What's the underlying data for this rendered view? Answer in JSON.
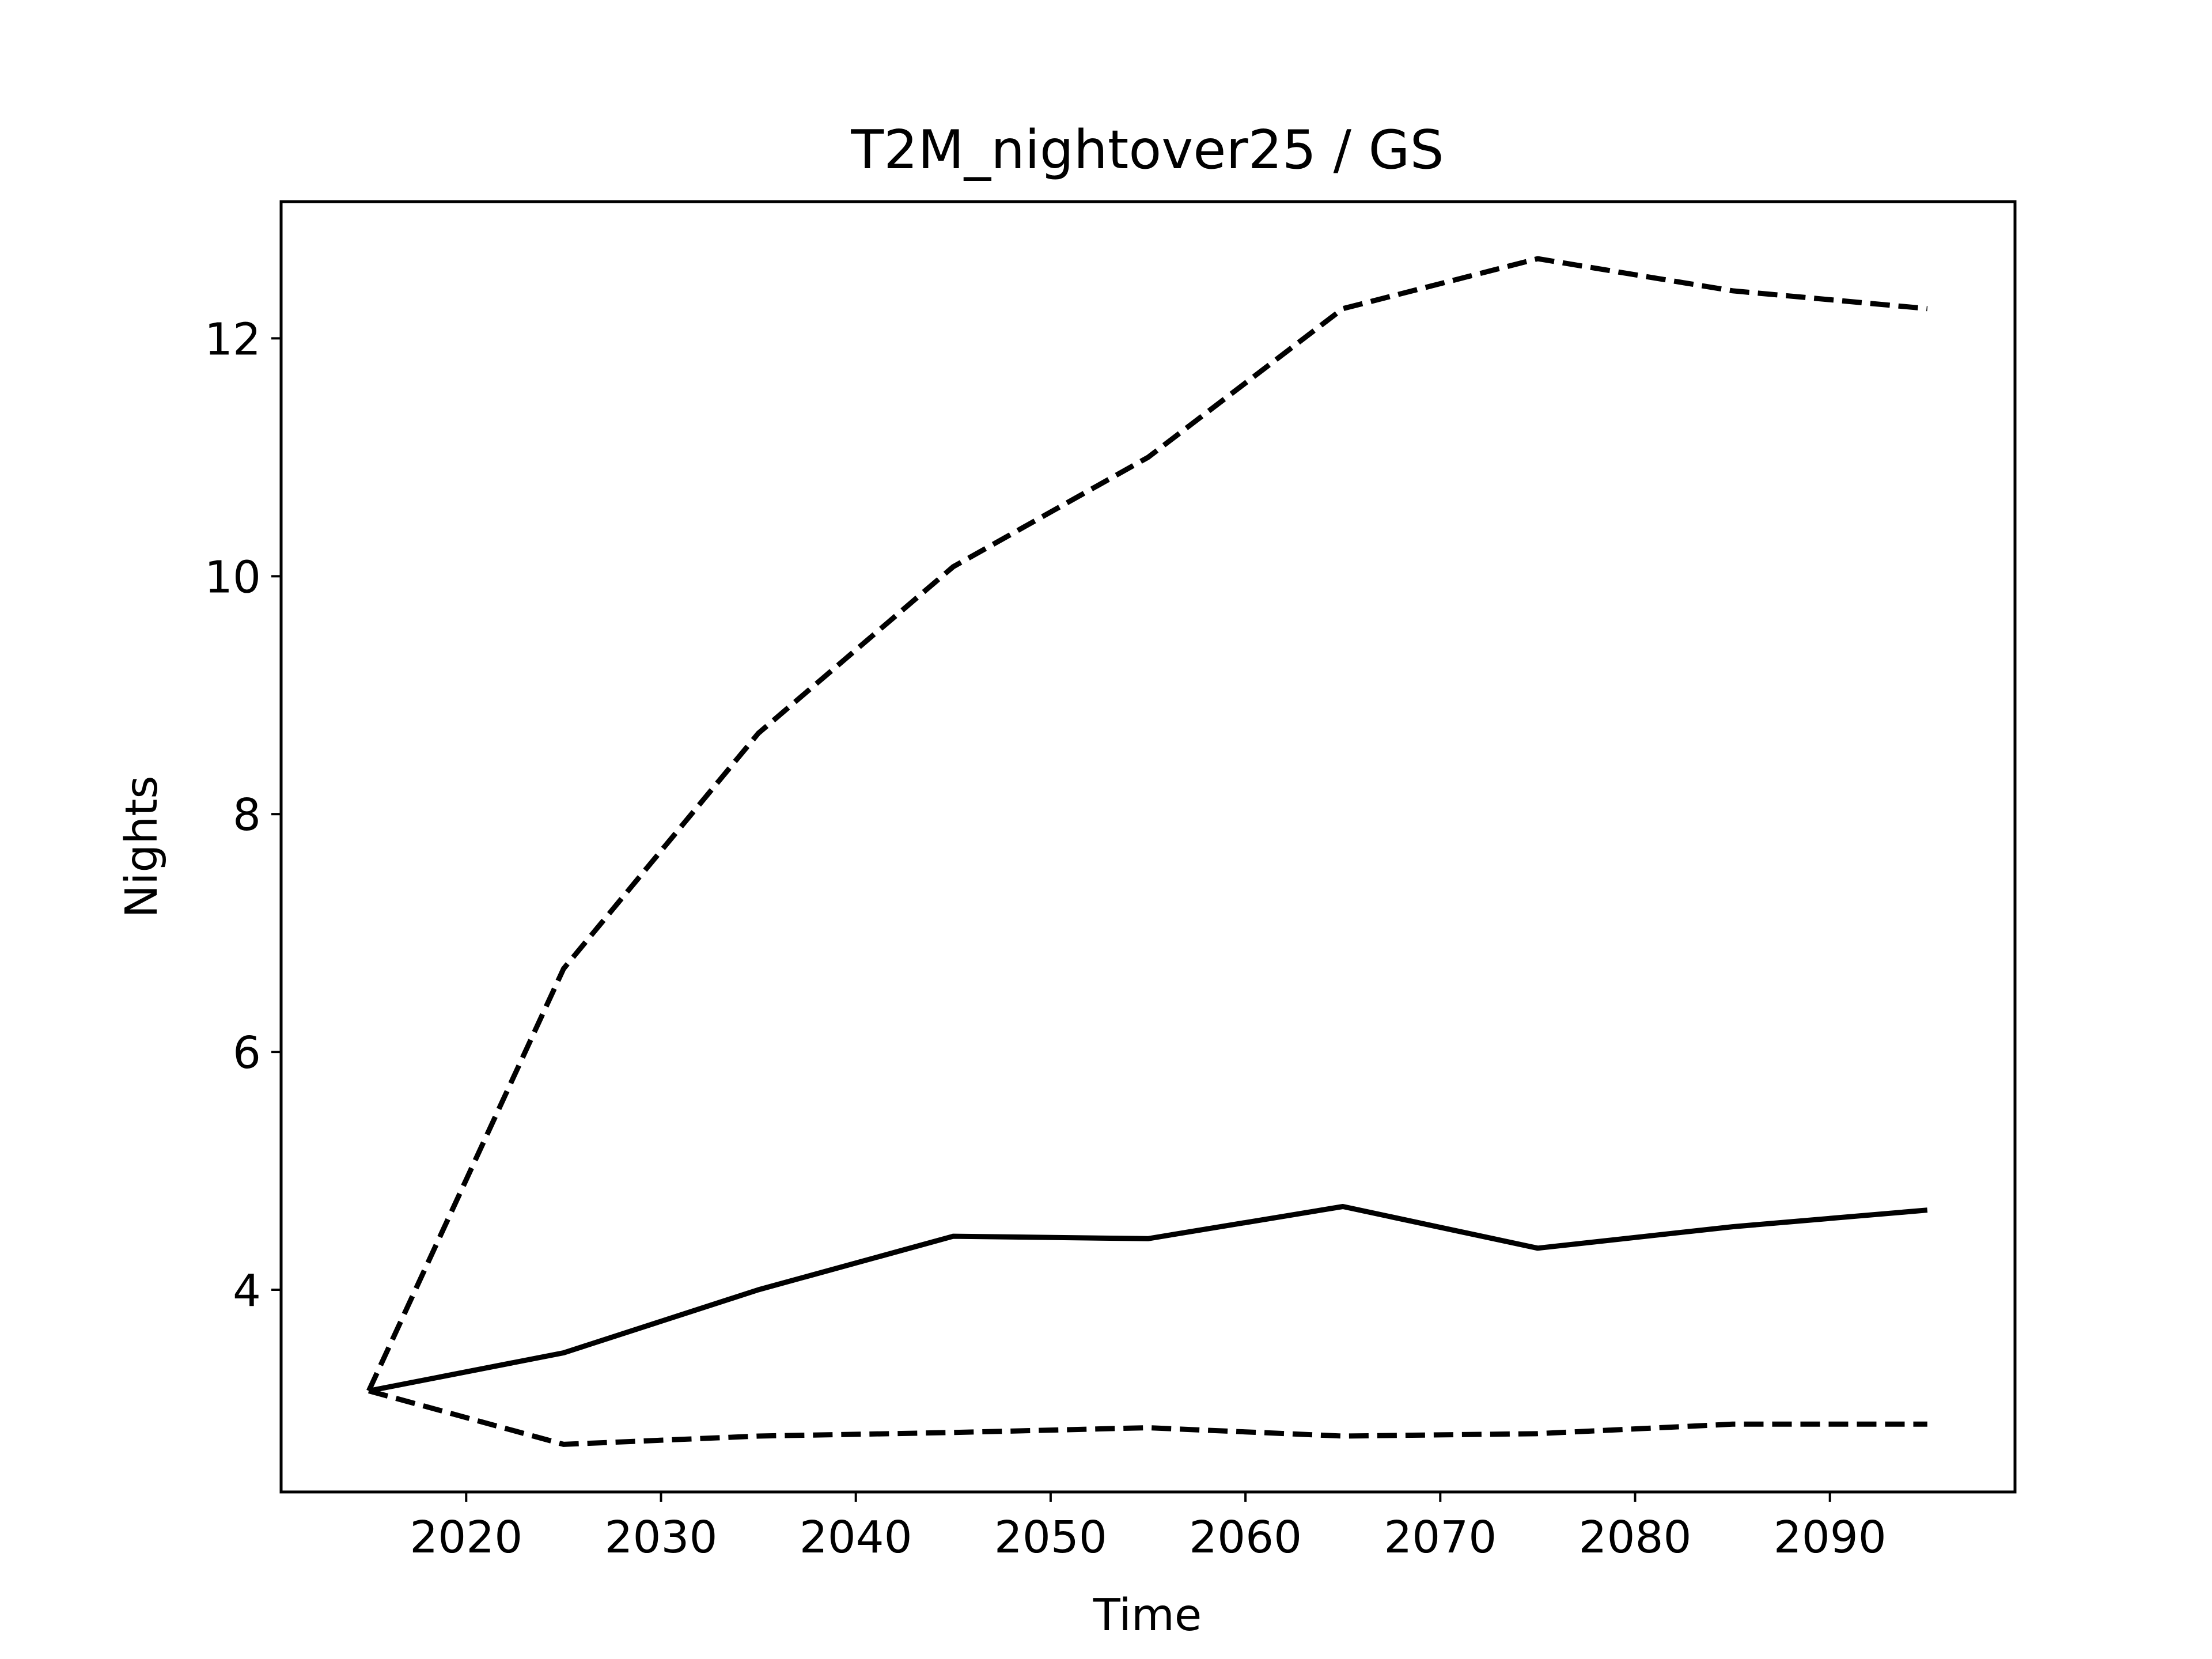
{
  "chart_data": {
    "type": "line",
    "title": "T2M_nightover25 / GS",
    "xlabel": "Time",
    "ylabel": "Nights",
    "xlim": [
      2010.5,
      2099.5
    ],
    "ylim": [
      2.3,
      13.15
    ],
    "x_ticks": [
      2020,
      2030,
      2040,
      2050,
      2060,
      2070,
      2080,
      2090
    ],
    "y_ticks": [
      4,
      6,
      8,
      10,
      12
    ],
    "grid": false,
    "legend": "none",
    "x": [
      2015,
      2025,
      2035,
      2045,
      2055,
      2065,
      2075,
      2085,
      2095
    ],
    "series": [
      {
        "style": "dashed",
        "color": "#000000",
        "values": [
          3.15,
          6.7,
          8.68,
          10.08,
          11.0,
          12.25,
          12.67,
          12.4,
          12.25
        ]
      },
      {
        "style": "solid",
        "color": "#000000",
        "values": [
          3.15,
          3.47,
          4.0,
          4.45,
          4.43,
          4.7,
          4.35,
          4.53,
          4.67
        ]
      },
      {
        "style": "dashed",
        "color": "#000000",
        "values": [
          3.15,
          2.7,
          2.77,
          2.8,
          2.84,
          2.77,
          2.79,
          2.87,
          2.87
        ]
      }
    ]
  }
}
